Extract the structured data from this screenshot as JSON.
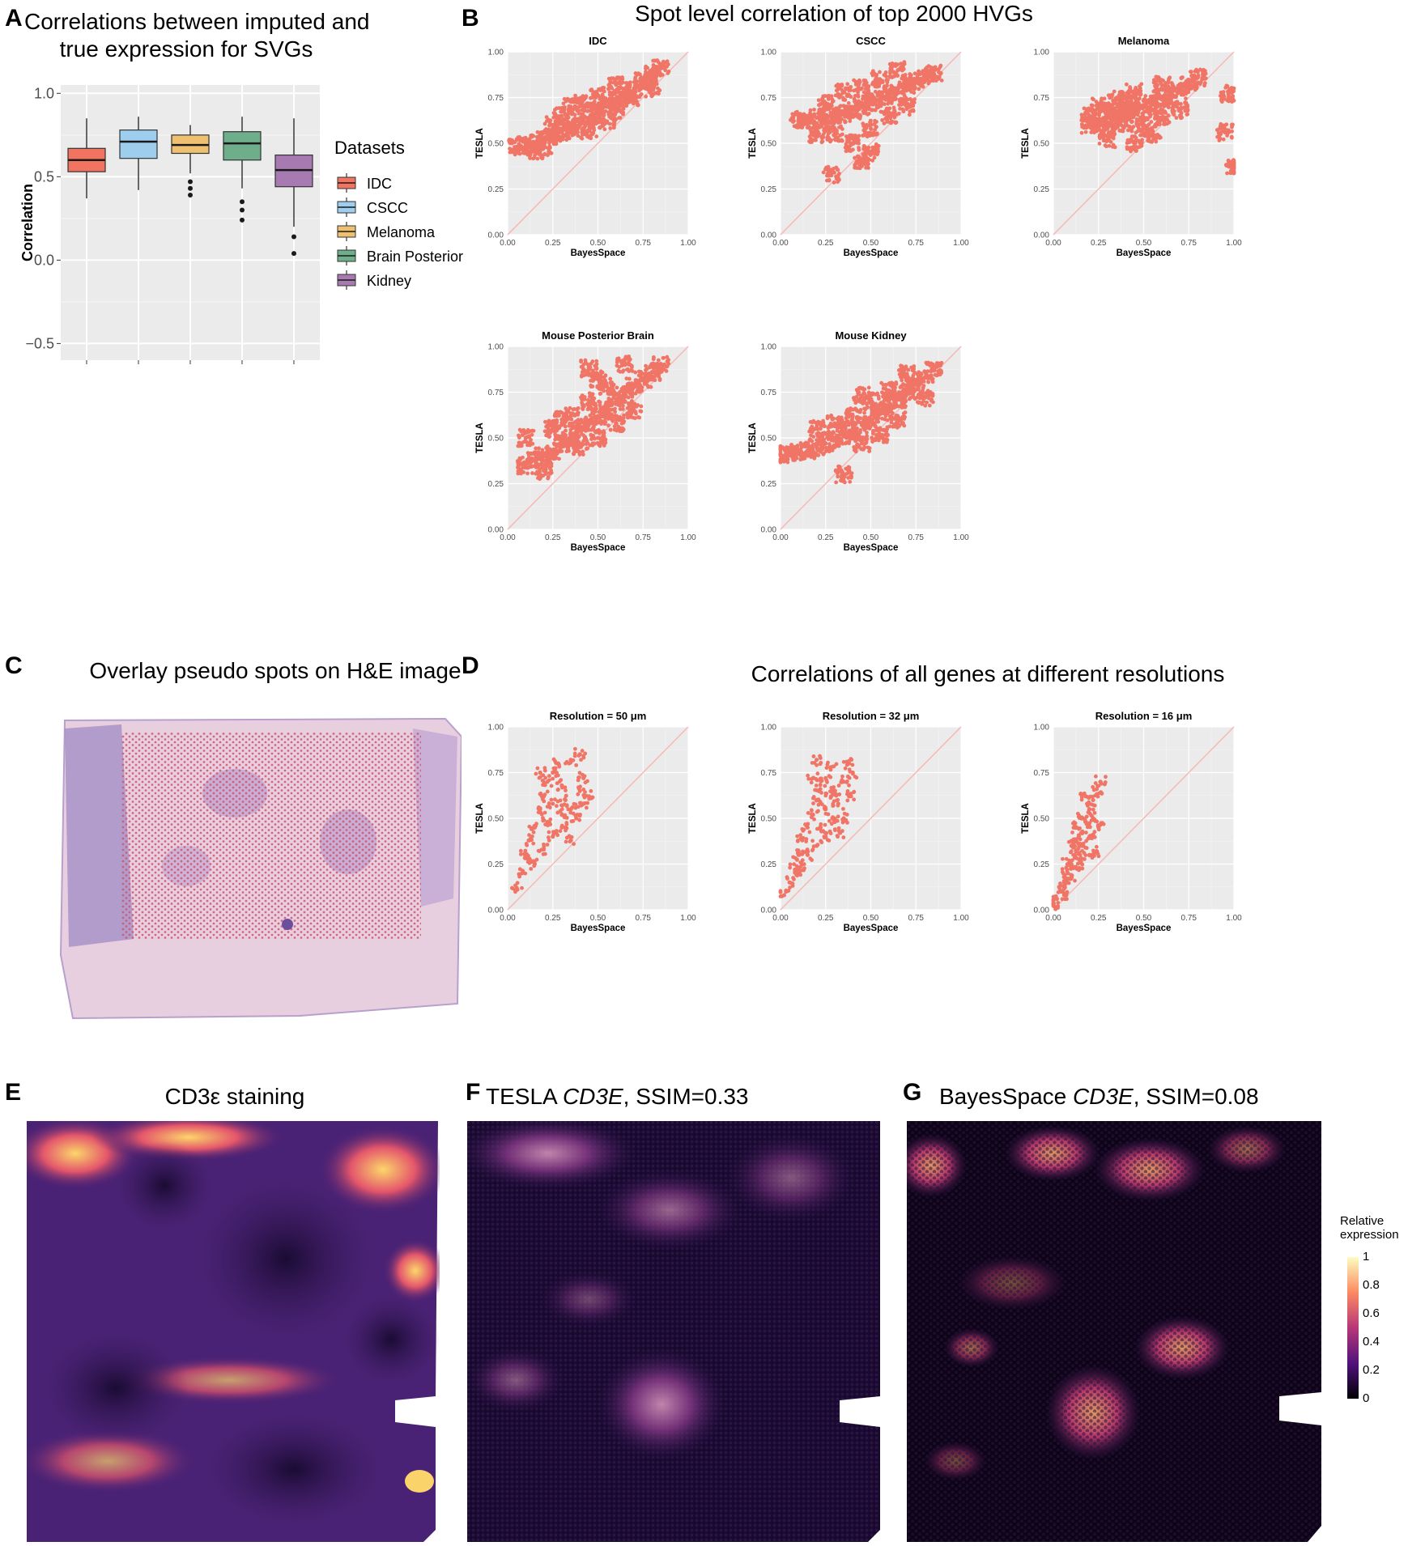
{
  "panels": {
    "A": {
      "label": "A",
      "title_line1": "Correlations between imputed and",
      "title_line2": "true expression for SVGs"
    },
    "B": {
      "label": "B",
      "title": "Spot level correlation of top 2000 HVGs"
    },
    "C": {
      "label": "C",
      "title": "Overlay pseudo spots on H&E image"
    },
    "D": {
      "label": "D",
      "title": "Correlations of all genes at different resolutions"
    },
    "E": {
      "label": "E",
      "title": "CD3ε staining"
    },
    "F": {
      "label": "F",
      "title_pre": "TESLA ",
      "title_gene": "CD3E",
      "title_post": ", SSIM=0.33"
    },
    "G": {
      "label": "G",
      "title_pre": "BayesSpace ",
      "title_gene": "CD3E",
      "title_post": ", SSIM=0.08"
    }
  },
  "colors": {
    "IDC": "#F0745F",
    "CSCC": "#9DCEEE",
    "Melanoma": "#EEC070",
    "Brain Posterior": "#6FAE8A",
    "Kidney": "#A87AB2",
    "scatter_point": "#F07566",
    "diagonal": "#F6B8B5",
    "panel_bg": "#EBEBEB"
  },
  "colorbar": {
    "title_line1": "Relative",
    "title_line2": "expression",
    "ticks": [
      "1",
      "0.8",
      "0.6",
      "0.4",
      "0.2",
      "0"
    ]
  },
  "chart_data": [
    {
      "type": "box",
      "id": "A",
      "ylabel": "Correlation",
      "ylim": [
        -0.6,
        1.05
      ],
      "yticks": [
        "1.0",
        "0.5",
        "0.0",
        "−0.5"
      ],
      "legend_title": "Datasets",
      "legend_position": "right",
      "series": [
        {
          "name": "IDC",
          "min": 0.37,
          "q1": 0.53,
          "median": 0.6,
          "q3": 0.67,
          "max": 0.85,
          "outliers": []
        },
        {
          "name": "CSCC",
          "min": 0.42,
          "q1": 0.61,
          "median": 0.71,
          "q3": 0.78,
          "max": 0.86,
          "outliers": []
        },
        {
          "name": "Melanoma",
          "min": 0.52,
          "q1": 0.64,
          "median": 0.69,
          "q3": 0.75,
          "max": 0.81,
          "outliers": [
            0.47,
            0.43,
            0.39
          ]
        },
        {
          "name": "Brain Posterior",
          "min": 0.43,
          "q1": 0.6,
          "median": 0.7,
          "q3": 0.77,
          "max": 0.86,
          "outliers": [
            0.35,
            0.3,
            0.24
          ]
        },
        {
          "name": "Kidney",
          "min": 0.2,
          "q1": 0.44,
          "median": 0.54,
          "q3": 0.63,
          "max": 0.85,
          "outliers": [
            0.14,
            0.04
          ]
        }
      ]
    },
    {
      "type": "scatter",
      "id": "B-IDC",
      "title": "IDC",
      "xlabel": "BayesSpace",
      "ylabel": "TESLA",
      "xlim": [
        0,
        1
      ],
      "ylim": [
        0,
        1
      ],
      "ticks": [
        "0.00",
        "0.25",
        "0.50",
        "0.75",
        "1.00"
      ],
      "points": [
        [
          0.05,
          0.48
        ],
        [
          0.1,
          0.49
        ],
        [
          0.15,
          0.5
        ],
        [
          0.2,
          0.52
        ],
        [
          0.25,
          0.54
        ],
        [
          0.3,
          0.56
        ],
        [
          0.35,
          0.58
        ],
        [
          0.4,
          0.6
        ],
        [
          0.45,
          0.64
        ],
        [
          0.5,
          0.67
        ],
        [
          0.55,
          0.7
        ],
        [
          0.6,
          0.74
        ],
        [
          0.65,
          0.77
        ],
        [
          0.7,
          0.8
        ],
        [
          0.75,
          0.84
        ],
        [
          0.8,
          0.88
        ],
        [
          0.3,
          0.65
        ],
        [
          0.4,
          0.72
        ],
        [
          0.5,
          0.76
        ],
        [
          0.6,
          0.82
        ],
        [
          0.45,
          0.57
        ],
        [
          0.55,
          0.62
        ],
        [
          0.25,
          0.6
        ],
        [
          0.35,
          0.7
        ],
        [
          0.6,
          0.67
        ],
        [
          0.7,
          0.74
        ],
        [
          0.15,
          0.46
        ],
        [
          0.2,
          0.48
        ],
        [
          0.8,
          0.8
        ],
        [
          0.85,
          0.91
        ]
      ]
    },
    {
      "type": "scatter",
      "id": "B-CSCC",
      "title": "CSCC",
      "xlabel": "BayesSpace",
      "ylabel": "TESLA",
      "xlim": [
        0,
        1
      ],
      "ylim": [
        0,
        1
      ],
      "ticks": [
        "0.00",
        "0.25",
        "0.50",
        "0.75",
        "1.00"
      ],
      "points": [
        [
          0.1,
          0.63
        ],
        [
          0.15,
          0.62
        ],
        [
          0.2,
          0.64
        ],
        [
          0.25,
          0.63
        ],
        [
          0.3,
          0.65
        ],
        [
          0.35,
          0.66
        ],
        [
          0.4,
          0.68
        ],
        [
          0.45,
          0.7
        ],
        [
          0.5,
          0.72
        ],
        [
          0.55,
          0.74
        ],
        [
          0.6,
          0.76
        ],
        [
          0.65,
          0.78
        ],
        [
          0.7,
          0.81
        ],
        [
          0.75,
          0.84
        ],
        [
          0.8,
          0.87
        ],
        [
          0.85,
          0.88
        ],
        [
          0.3,
          0.55
        ],
        [
          0.4,
          0.5
        ],
        [
          0.5,
          0.58
        ],
        [
          0.6,
          0.65
        ],
        [
          0.35,
          0.78
        ],
        [
          0.45,
          0.8
        ],
        [
          0.55,
          0.85
        ],
        [
          0.25,
          0.72
        ],
        [
          0.65,
          0.9
        ],
        [
          0.5,
          0.45
        ],
        [
          0.28,
          0.33
        ],
        [
          0.45,
          0.4
        ],
        [
          0.7,
          0.7
        ],
        [
          0.2,
          0.55
        ]
      ]
    },
    {
      "type": "scatter",
      "id": "B-Melanoma",
      "title": "Melanoma",
      "xlabel": "BayesSpace",
      "ylabel": "TESLA",
      "xlim": [
        0,
        1
      ],
      "ylim": [
        0,
        1
      ],
      "ticks": [
        "0.00",
        "0.25",
        "0.50",
        "0.75",
        "1.00"
      ],
      "points": [
        [
          0.2,
          0.65
        ],
        [
          0.25,
          0.63
        ],
        [
          0.3,
          0.64
        ],
        [
          0.35,
          0.66
        ],
        [
          0.4,
          0.67
        ],
        [
          0.45,
          0.68
        ],
        [
          0.5,
          0.7
        ],
        [
          0.55,
          0.72
        ],
        [
          0.6,
          0.74
        ],
        [
          0.65,
          0.76
        ],
        [
          0.7,
          0.79
        ],
        [
          0.75,
          0.82
        ],
        [
          0.8,
          0.86
        ],
        [
          0.3,
          0.58
        ],
        [
          0.4,
          0.6
        ],
        [
          0.5,
          0.6
        ],
        [
          0.35,
          0.74
        ],
        [
          0.45,
          0.78
        ],
        [
          0.6,
          0.82
        ],
        [
          0.25,
          0.7
        ],
        [
          0.55,
          0.55
        ],
        [
          0.45,
          0.5
        ],
        [
          0.95,
          0.56
        ],
        [
          0.97,
          0.77
        ],
        [
          1.0,
          0.37
        ],
        [
          0.3,
          0.52
        ],
        [
          0.7,
          0.68
        ],
        [
          0.4,
          0.72
        ],
        [
          0.2,
          0.6
        ],
        [
          0.6,
          0.64
        ]
      ]
    },
    {
      "type": "scatter",
      "id": "B-MousePosteriorBrain",
      "title": "Mouse Posterior Brain",
      "xlabel": "BayesSpace",
      "ylabel": "TESLA",
      "xlim": [
        0,
        1
      ],
      "ylim": [
        0,
        1
      ],
      "ticks": [
        "0.00",
        "0.25",
        "0.50",
        "0.75",
        "1.00"
      ],
      "points": [
        [
          0.1,
          0.35
        ],
        [
          0.15,
          0.38
        ],
        [
          0.2,
          0.4
        ],
        [
          0.25,
          0.43
        ],
        [
          0.3,
          0.47
        ],
        [
          0.35,
          0.5
        ],
        [
          0.4,
          0.54
        ],
        [
          0.45,
          0.58
        ],
        [
          0.5,
          0.62
        ],
        [
          0.55,
          0.66
        ],
        [
          0.6,
          0.7
        ],
        [
          0.65,
          0.74
        ],
        [
          0.7,
          0.78
        ],
        [
          0.75,
          0.82
        ],
        [
          0.8,
          0.86
        ],
        [
          0.85,
          0.9
        ],
        [
          0.25,
          0.55
        ],
        [
          0.35,
          0.62
        ],
        [
          0.45,
          0.7
        ],
        [
          0.55,
          0.78
        ],
        [
          0.4,
          0.45
        ],
        [
          0.5,
          0.5
        ],
        [
          0.6,
          0.58
        ],
        [
          0.3,
          0.6
        ],
        [
          0.5,
          0.82
        ],
        [
          0.1,
          0.5
        ],
        [
          0.2,
          0.32
        ],
        [
          0.7,
          0.65
        ],
        [
          0.45,
          0.88
        ],
        [
          0.65,
          0.9
        ]
      ]
    },
    {
      "type": "scatter",
      "id": "B-MouseKidney",
      "title": "Mouse Kidney",
      "xlabel": "BayesSpace",
      "ylabel": "TESLA",
      "xlim": [
        0,
        1
      ],
      "ylim": [
        0,
        1
      ],
      "ticks": [
        "0.00",
        "0.25",
        "0.50",
        "0.75",
        "1.00"
      ],
      "points": [
        [
          0.0,
          0.41
        ],
        [
          0.05,
          0.42
        ],
        [
          0.1,
          0.42
        ],
        [
          0.15,
          0.43
        ],
        [
          0.2,
          0.45
        ],
        [
          0.25,
          0.47
        ],
        [
          0.3,
          0.49
        ],
        [
          0.35,
          0.51
        ],
        [
          0.4,
          0.54
        ],
        [
          0.45,
          0.57
        ],
        [
          0.5,
          0.6
        ],
        [
          0.55,
          0.64
        ],
        [
          0.6,
          0.68
        ],
        [
          0.65,
          0.71
        ],
        [
          0.7,
          0.75
        ],
        [
          0.75,
          0.79
        ],
        [
          0.8,
          0.83
        ],
        [
          0.85,
          0.87
        ],
        [
          0.3,
          0.58
        ],
        [
          0.4,
          0.62
        ],
        [
          0.5,
          0.7
        ],
        [
          0.6,
          0.76
        ],
        [
          0.45,
          0.47
        ],
        [
          0.55,
          0.52
        ],
        [
          0.65,
          0.6
        ],
        [
          0.35,
          0.3
        ],
        [
          0.45,
          0.73
        ],
        [
          0.7,
          0.85
        ],
        [
          0.2,
          0.55
        ],
        [
          0.8,
          0.72
        ]
      ]
    },
    {
      "type": "scatter",
      "id": "D-50",
      "title": "Resolution = 50 μm",
      "xlabel": "BayesSpace",
      "ylabel": "TESLA",
      "xlim": [
        0,
        1
      ],
      "ylim": [
        0,
        1
      ],
      "ticks": [
        "0.00",
        "0.25",
        "0.50",
        "0.75",
        "1.00"
      ],
      "points": [
        [
          0.05,
          0.12
        ],
        [
          0.08,
          0.2
        ],
        [
          0.1,
          0.3
        ],
        [
          0.12,
          0.38
        ],
        [
          0.15,
          0.45
        ],
        [
          0.18,
          0.55
        ],
        [
          0.2,
          0.62
        ],
        [
          0.22,
          0.7
        ],
        [
          0.25,
          0.75
        ],
        [
          0.28,
          0.8
        ],
        [
          0.3,
          0.68
        ],
        [
          0.32,
          0.6
        ],
        [
          0.35,
          0.55
        ],
        [
          0.38,
          0.5
        ],
        [
          0.4,
          0.65
        ],
        [
          0.42,
          0.72
        ],
        [
          0.45,
          0.62
        ],
        [
          0.25,
          0.4
        ],
        [
          0.2,
          0.33
        ],
        [
          0.3,
          0.45
        ],
        [
          0.35,
          0.82
        ],
        [
          0.4,
          0.85
        ],
        [
          0.15,
          0.25
        ],
        [
          0.25,
          0.58
        ],
        [
          0.3,
          0.52
        ],
        [
          0.18,
          0.75
        ],
        [
          0.22,
          0.48
        ],
        [
          0.35,
          0.38
        ],
        [
          0.12,
          0.28
        ],
        [
          0.42,
          0.58
        ]
      ]
    },
    {
      "type": "scatter",
      "id": "D-32",
      "title": "Resolution = 32 μm",
      "xlabel": "BayesSpace",
      "ylabel": "TESLA",
      "xlim": [
        0,
        1
      ],
      "ylim": [
        0,
        1
      ],
      "ticks": [
        "0.00",
        "0.25",
        "0.50",
        "0.75",
        "1.00"
      ],
      "points": [
        [
          0.02,
          0.08
        ],
        [
          0.05,
          0.15
        ],
        [
          0.08,
          0.22
        ],
        [
          0.1,
          0.3
        ],
        [
          0.12,
          0.38
        ],
        [
          0.15,
          0.45
        ],
        [
          0.18,
          0.52
        ],
        [
          0.2,
          0.6
        ],
        [
          0.22,
          0.66
        ],
        [
          0.25,
          0.72
        ],
        [
          0.28,
          0.78
        ],
        [
          0.3,
          0.65
        ],
        [
          0.32,
          0.58
        ],
        [
          0.35,
          0.5
        ],
        [
          0.25,
          0.4
        ],
        [
          0.2,
          0.35
        ],
        [
          0.3,
          0.48
        ],
        [
          0.35,
          0.7
        ],
        [
          0.38,
          0.8
        ],
        [
          0.4,
          0.75
        ],
        [
          0.15,
          0.3
        ],
        [
          0.1,
          0.2
        ],
        [
          0.25,
          0.55
        ],
        [
          0.18,
          0.72
        ],
        [
          0.22,
          0.45
        ],
        [
          0.28,
          0.62
        ],
        [
          0.33,
          0.42
        ],
        [
          0.12,
          0.25
        ],
        [
          0.38,
          0.62
        ],
        [
          0.2,
          0.82
        ]
      ]
    },
    {
      "type": "scatter",
      "id": "D-16",
      "title": "Resolution = 16 μm",
      "xlabel": "BayesSpace",
      "ylabel": "TESLA",
      "xlim": [
        0,
        1
      ],
      "ylim": [
        0,
        1
      ],
      "ticks": [
        "0.00",
        "0.25",
        "0.50",
        "0.75",
        "1.00"
      ],
      "points": [
        [
          0.0,
          0.03
        ],
        [
          0.02,
          0.06
        ],
        [
          0.04,
          0.1
        ],
        [
          0.06,
          0.15
        ],
        [
          0.08,
          0.2
        ],
        [
          0.1,
          0.25
        ],
        [
          0.12,
          0.3
        ],
        [
          0.14,
          0.36
        ],
        [
          0.16,
          0.42
        ],
        [
          0.18,
          0.48
        ],
        [
          0.2,
          0.55
        ],
        [
          0.22,
          0.6
        ],
        [
          0.24,
          0.66
        ],
        [
          0.26,
          0.7
        ],
        [
          0.12,
          0.38
        ],
        [
          0.16,
          0.5
        ],
        [
          0.2,
          0.4
        ],
        [
          0.24,
          0.32
        ],
        [
          0.1,
          0.18
        ],
        [
          0.15,
          0.28
        ],
        [
          0.08,
          0.25
        ],
        [
          0.18,
          0.62
        ],
        [
          0.22,
          0.5
        ],
        [
          0.14,
          0.22
        ],
        [
          0.06,
          0.08
        ],
        [
          0.2,
          0.3
        ],
        [
          0.25,
          0.45
        ],
        [
          0.1,
          0.35
        ],
        [
          0.16,
          0.35
        ],
        [
          0.12,
          0.45
        ]
      ]
    }
  ]
}
